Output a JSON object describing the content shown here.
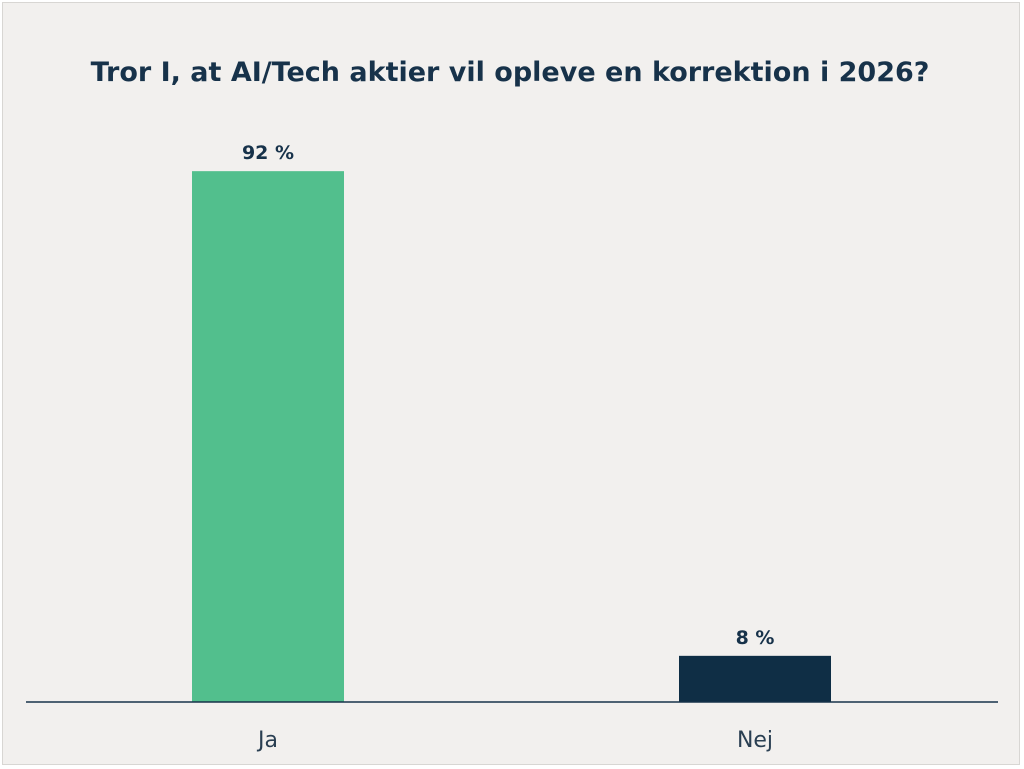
{
  "chart_data": {
    "type": "bar",
    "title": "Tror I, at AI/Tech aktier vil opleve en korrektion i 2026?",
    "categories": [
      "Ja",
      "Nej"
    ],
    "values": [
      92,
      8
    ],
    "value_labels": [
      "92 %",
      "8 %"
    ],
    "ylim": [
      0,
      100
    ],
    "grid": false,
    "legend": "none",
    "colors": [
      "#52bf8d",
      "#0f2e45"
    ],
    "axis_color": "#17324a"
  }
}
